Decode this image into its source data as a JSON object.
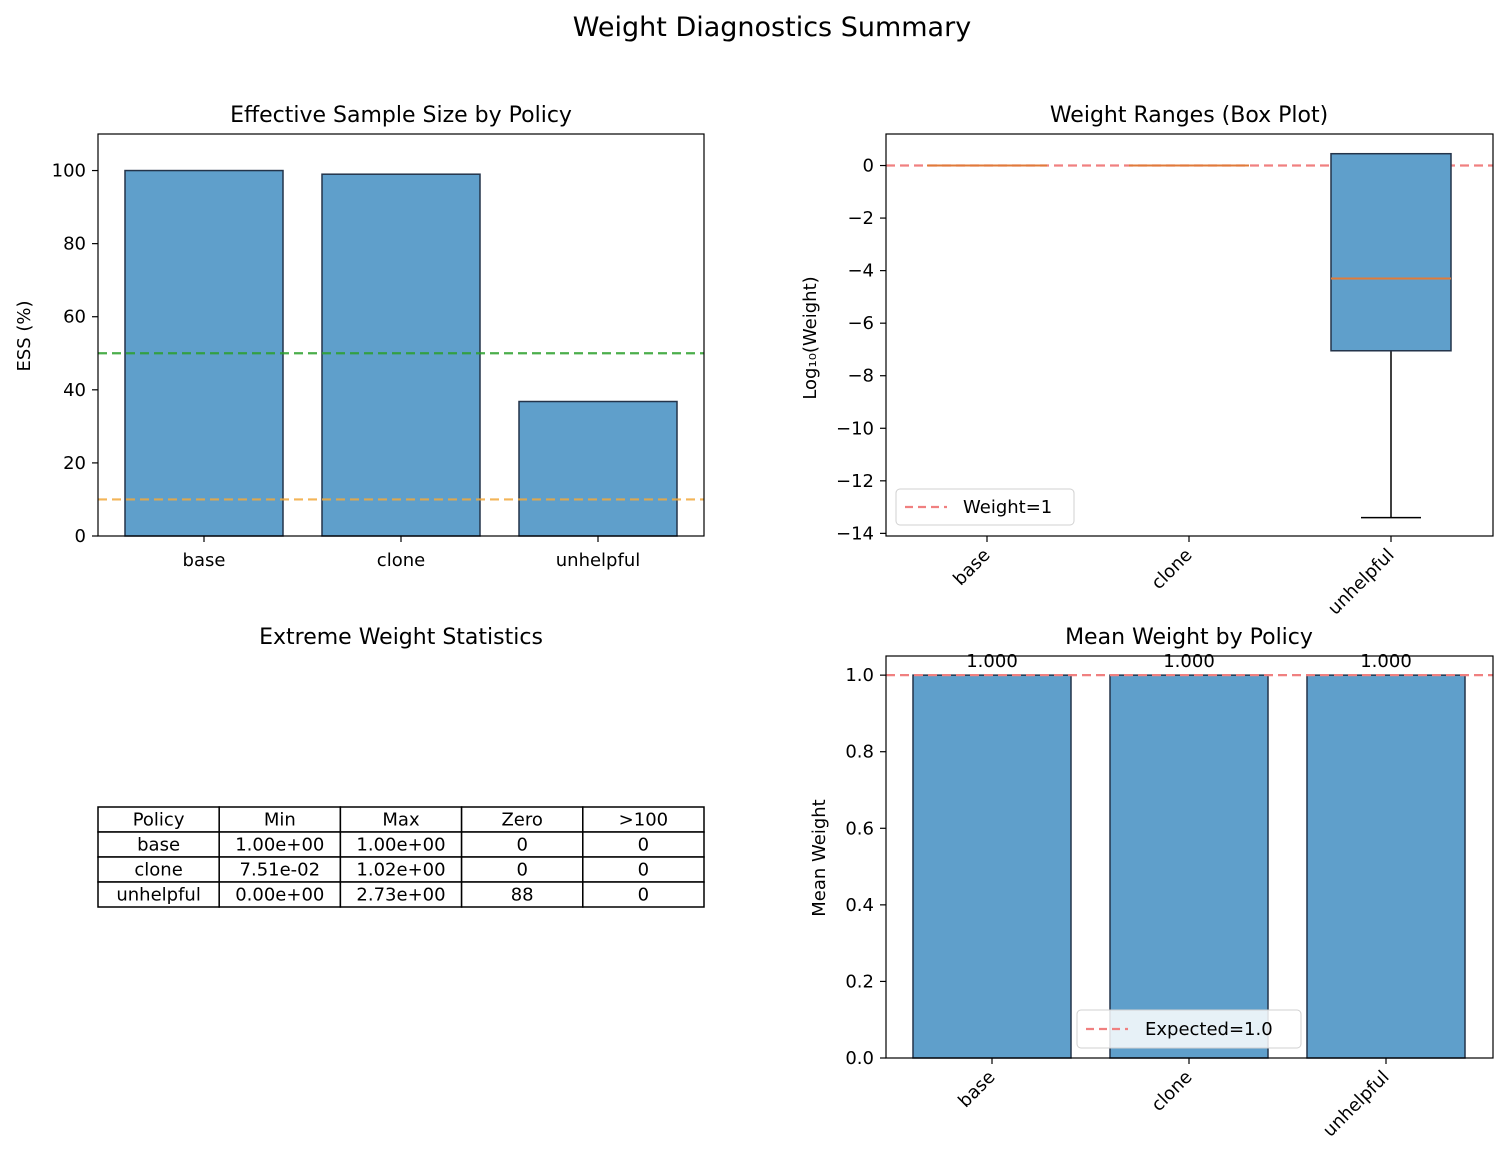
{
  "figure_title": "Weight Diagnostics Summary",
  "colors": {
    "bar": "#5f9fcb",
    "bar_edge": "#24344a",
    "ess_good_line": "#2ca02c",
    "ess_warn_line": "#f2a93b",
    "reference_line": "#f08080",
    "median_line": "#e07b39"
  },
  "chart_data": [
    {
      "id": "ess",
      "type": "bar",
      "title": "Effective Sample Size by Policy",
      "xlabel": "",
      "ylabel": "ESS (%)",
      "categories": [
        "base",
        "clone",
        "unhelpful"
      ],
      "values": [
        100.0,
        99.0,
        36.8
      ],
      "ylim": [
        0,
        110
      ],
      "yticks": [
        0,
        20,
        40,
        60,
        80,
        100
      ],
      "reference_lines": [
        {
          "y": 50,
          "color": "green",
          "style": "dashed"
        },
        {
          "y": 10,
          "color": "orange",
          "style": "dashed"
        }
      ],
      "grid": false,
      "legend": null
    },
    {
      "id": "box",
      "type": "box",
      "title": "Weight Ranges (Box Plot)",
      "xlabel": "",
      "ylabel": "Log₁₀(Weight)",
      "categories": [
        "base",
        "clone",
        "unhelpful"
      ],
      "boxes": [
        {
          "min": 0.0,
          "q1": 0.0,
          "median": 0.0,
          "q3": 0.0,
          "max": 0.0
        },
        {
          "min": 0.0,
          "q1": 0.0,
          "median": 0.0,
          "q3": 0.0,
          "max": 0.0
        },
        {
          "min": -13.4,
          "q1": -7.05,
          "median": -4.3,
          "q3": 0.45,
          "max": 0.45
        }
      ],
      "ylim": [
        -14.1,
        1.2
      ],
      "yticks": [
        -14,
        -12,
        -10,
        -8,
        -6,
        -4,
        -2,
        0
      ],
      "reference_line": {
        "y": 0,
        "label": "Weight=1"
      },
      "legend": {
        "position": "lower-left",
        "entries": [
          "Weight=1"
        ]
      },
      "xtick_rotation": 45,
      "grid": false
    },
    {
      "id": "extreme",
      "type": "table",
      "title": "Extreme Weight Statistics",
      "columns": [
        "Policy",
        "Min",
        "Max",
        "Zero",
        ">100"
      ],
      "rows": [
        [
          "base",
          "1.00e+00",
          "1.00e+00",
          "0",
          "0"
        ],
        [
          "clone",
          "7.51e-02",
          "1.02e+00",
          "0",
          "0"
        ],
        [
          "unhelpful",
          "0.00e+00",
          "2.73e+00",
          "88",
          "0"
        ]
      ]
    },
    {
      "id": "mean",
      "type": "bar",
      "title": "Mean Weight by Policy",
      "xlabel": "",
      "ylabel": "Mean Weight",
      "categories": [
        "base",
        "clone",
        "unhelpful"
      ],
      "values": [
        1.0,
        1.0,
        1.0
      ],
      "data_labels": [
        "1.000",
        "1.000",
        "1.000"
      ],
      "ylim": [
        0,
        1.05
      ],
      "yticks": [
        0.0,
        0.2,
        0.4,
        0.6,
        0.8,
        1.0
      ],
      "reference_line": {
        "y": 1.0,
        "label": "Expected=1.0"
      },
      "legend": {
        "position": "lower-center",
        "entries": [
          "Expected=1.0"
        ]
      },
      "xtick_rotation": 45,
      "grid": false
    }
  ]
}
